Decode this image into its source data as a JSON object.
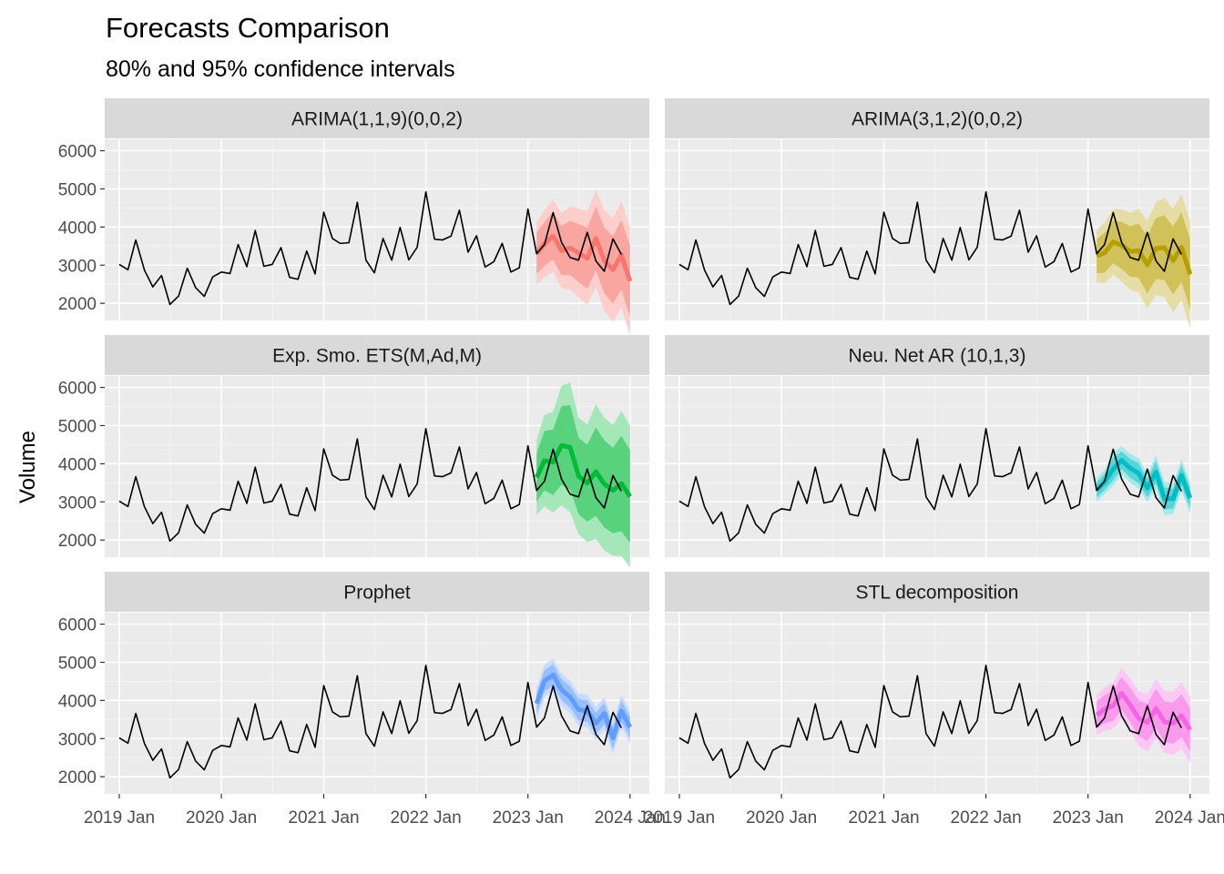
{
  "chart_data": {
    "type": "line",
    "title": "Forecasts Comparison",
    "subtitle": "80% and 95% confidence intervals",
    "xlabel": "",
    "ylabel": "Volume",
    "grid": true,
    "legend": "none",
    "ylim": [
      1550,
      6300
    ],
    "yticks": [
      2000,
      3000,
      4000,
      5000,
      6000
    ],
    "xlim": [
      "2018-11-10",
      "2024-03-10"
    ],
    "xticks": [
      "2019-01-01",
      "2020-01-01",
      "2021-01-01",
      "2022-01-01",
      "2023-01-01",
      "2024-01-01"
    ],
    "xtick_labels": [
      "2019 Jan",
      "2020 Jan",
      "2021 Jan",
      "2022 Jan",
      "2023 Jan",
      "2024 Jan"
    ],
    "history": {
      "start": "2019-01",
      "frequency": "monthly",
      "values": [
        3020,
        2880,
        3660,
        2870,
        2430,
        2730,
        1970,
        2190,
        2920,
        2410,
        2180,
        2690,
        2820,
        2780,
        3540,
        2960,
        3910,
        2970,
        3020,
        3460,
        2680,
        2630,
        3370,
        2770,
        4390,
        3700,
        3570,
        3590,
        4650,
        3130,
        2800,
        3700,
        3130,
        3990,
        3140,
        3470,
        4920,
        3680,
        3660,
        3760,
        4440,
        3340,
        3770,
        2950,
        3090,
        3570,
        2820,
        2930,
        4470,
        3300,
        3540,
        4380,
        3600,
        3200,
        3130,
        3860,
        3110,
        2840,
        3690,
        3280
      ]
    },
    "forecast_start": "2023-02",
    "series": [
      {
        "name": "ARIMA(1,1,9)(0,0,2)",
        "color": "#F8766D",
        "mean": [
          3310,
          3560,
          3770,
          3380,
          3450,
          3320,
          3180,
          3700,
          3120,
          2880,
          3270,
          2580
        ],
        "lo80": [
          2770,
          2980,
          3150,
          2730,
          2740,
          2560,
          2380,
          2860,
          2260,
          1990,
          2360,
          1650
        ],
        "hi80": [
          3850,
          4140,
          4390,
          4030,
          4160,
          4080,
          3980,
          4540,
          3980,
          3770,
          4180,
          3510
        ],
        "lo95": [
          2490,
          2680,
          2830,
          2390,
          2360,
          2160,
          1960,
          2420,
          1800,
          1520,
          1880,
          1160
        ],
        "hi95": [
          4130,
          4440,
          4710,
          4370,
          4540,
          4480,
          4400,
          4980,
          4440,
          4240,
          4660,
          4000
        ]
      },
      {
        "name": "ARIMA(3,1,2)(0,0,2)",
        "color": "#B79F00",
        "mean": [
          3240,
          3320,
          3610,
          3520,
          3360,
          3380,
          3010,
          3440,
          3460,
          3120,
          3470,
          2760
        ],
        "lo80": [
          2790,
          2800,
          3050,
          2900,
          2700,
          2670,
          2260,
          2640,
          2610,
          2230,
          2560,
          1840
        ],
        "hi80": [
          3690,
          3840,
          4170,
          4140,
          4020,
          4090,
          3760,
          4240,
          4310,
          4010,
          4380,
          3680
        ],
        "lo95": [
          2550,
          2530,
          2750,
          2570,
          2350,
          2290,
          1860,
          2220,
          2160,
          1760,
          2080,
          1350
        ],
        "hi95": [
          3930,
          4110,
          4470,
          4470,
          4370,
          4470,
          4160,
          4660,
          4760,
          4480,
          4860,
          4170
        ]
      },
      {
        "name": "Exp. Smo. ETS(M,Ad,M)",
        "color": "#00BA38",
        "mean": [
          3640,
          4080,
          4040,
          4480,
          4430,
          3680,
          3490,
          3790,
          3470,
          3300,
          3480,
          3140
        ],
        "lo80": [
          3000,
          3300,
          3180,
          3450,
          3320,
          2680,
          2480,
          2630,
          2330,
          2180,
          2230,
          1920
        ],
        "hi80": [
          4280,
          4860,
          4900,
          5510,
          5540,
          4680,
          4500,
          4950,
          4610,
          4420,
          4730,
          4360
        ],
        "lo95": [
          2650,
          2880,
          2720,
          2910,
          2730,
          2150,
          1950,
          2020,
          1730,
          1590,
          1580,
          1280
        ],
        "hi95": [
          4630,
          5280,
          5360,
          6050,
          6130,
          5210,
          5030,
          5560,
          5210,
          5010,
          5380,
          5000
        ]
      },
      {
        "name": "Neu. Net AR (10,1,3)",
        "color": "#00BFC4",
        "mean": [
          3310,
          3520,
          3860,
          4090,
          3880,
          3750,
          3360,
          3780,
          3090,
          3080,
          3700,
          3100
        ],
        "lo80": [
          3110,
          3310,
          3560,
          3860,
          3630,
          3490,
          3120,
          3490,
          2800,
          2820,
          3430,
          2830
        ],
        "hi80": [
          3510,
          3730,
          4160,
          4320,
          4130,
          4010,
          3600,
          4070,
          3380,
          3340,
          3970,
          3370
        ],
        "lo95": [
          3000,
          3200,
          3430,
          3720,
          3500,
          3350,
          2990,
          3340,
          2650,
          2680,
          3290,
          2690
        ],
        "hi95": [
          3620,
          3840,
          4290,
          4460,
          4260,
          4150,
          3730,
          4220,
          3530,
          3480,
          4110,
          3510
        ]
      },
      {
        "name": "Prophet",
        "color": "#619CFF",
        "mean": [
          3920,
          4510,
          4670,
          4280,
          4090,
          3760,
          3720,
          3400,
          3660,
          3020,
          3720,
          3300
        ],
        "lo80": [
          3650,
          4230,
          4390,
          4000,
          3810,
          3480,
          3440,
          3120,
          3380,
          2740,
          3440,
          3020
        ],
        "hi80": [
          4190,
          4790,
          4950,
          4560,
          4370,
          4040,
          4000,
          3680,
          3940,
          3300,
          4000,
          3580
        ],
        "lo95": [
          3500,
          4080,
          4240,
          3850,
          3660,
          3330,
          3290,
          2970,
          3230,
          2590,
          3290,
          2870
        ],
        "hi95": [
          4340,
          4940,
          5100,
          4710,
          4520,
          4190,
          4150,
          3830,
          4090,
          3450,
          4150,
          3730
        ]
      },
      {
        "name": "STL decomposition",
        "color": "#F564E3",
        "mean": [
          3620,
          3770,
          3860,
          4190,
          3880,
          3530,
          3420,
          3790,
          3440,
          3400,
          3600,
          3230
        ],
        "lo80": [
          3280,
          3400,
          3460,
          3760,
          3430,
          3060,
          2930,
          3280,
          2910,
          2860,
          3040,
          2660
        ],
        "hi80": [
          3960,
          4140,
          4260,
          4620,
          4330,
          4000,
          3910,
          4300,
          3970,
          3940,
          4160,
          3800
        ],
        "lo95": [
          3100,
          3200,
          3250,
          3530,
          3190,
          2810,
          2670,
          3010,
          2630,
          2570,
          2740,
          2360
        ],
        "hi95": [
          4140,
          4340,
          4470,
          4850,
          4570,
          4250,
          4170,
          4570,
          4250,
          4230,
          4460,
          4100
        ]
      }
    ]
  }
}
